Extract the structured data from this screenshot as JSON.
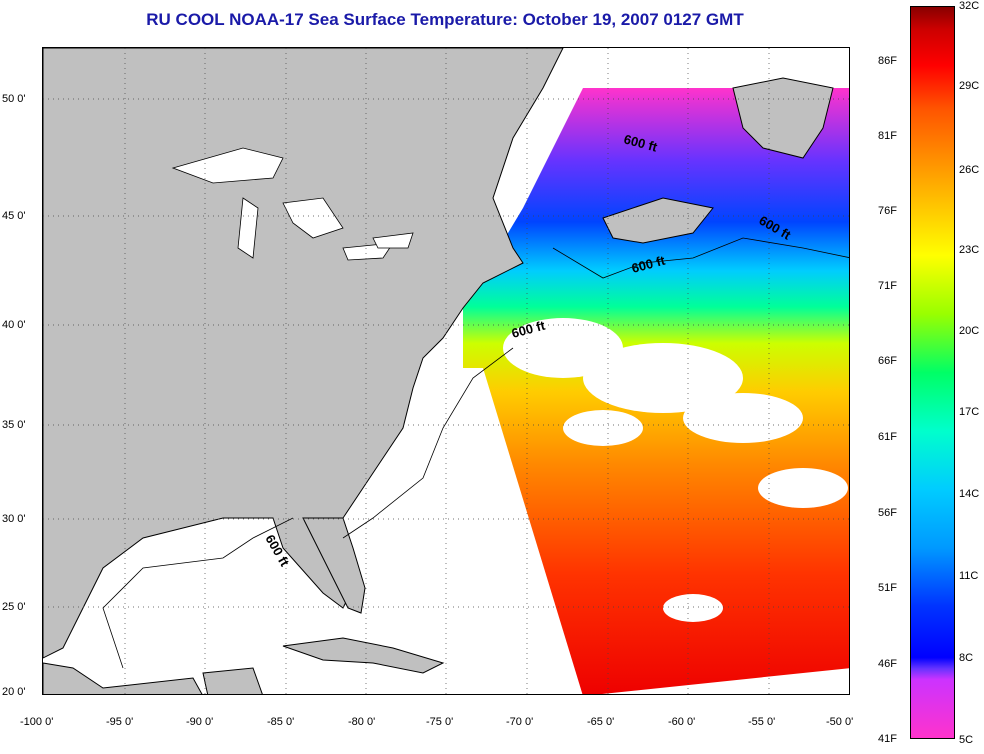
{
  "title": "RU COOL  NOAA-17  Sea Surface Temperature:  October 19, 2007 0127 GMT",
  "lat_labels": [
    "50 0'",
    "45 0'",
    "40 0'",
    "35 0'",
    "30 0'",
    "25 0'",
    "20 0'"
  ],
  "lon_labels": [
    "-100 0'",
    "-95 0'",
    "-90 0'",
    "-85 0'",
    "-80 0'",
    "-75 0'",
    "-70 0'",
    "-65 0'",
    "-60 0'",
    "-55 0'",
    "-50 0'"
  ],
  "colorbar": {
    "fahrenheit": [
      "86F",
      "81F",
      "76F",
      "71F",
      "66F",
      "61F",
      "56F",
      "51F",
      "46F",
      "41F"
    ],
    "celsius": [
      "32C",
      "29C",
      "26C",
      "23C",
      "20C",
      "17C",
      "14C",
      "11C",
      "8C",
      "5C"
    ]
  },
  "contour_labels": [
    "600 ft",
    "600 ft",
    "600 ft",
    "600 ft",
    "600 ft"
  ],
  "colors": {
    "land": "#c0c0c0",
    "cloud": "#ffffff",
    "title": "#1a1aa8"
  }
}
